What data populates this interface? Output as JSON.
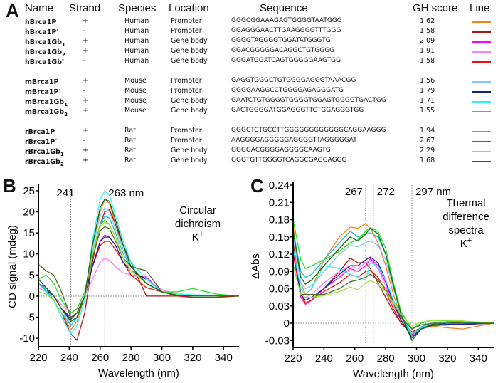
{
  "panels": {
    "a": "A",
    "b": "B",
    "c": "C"
  },
  "table": {
    "headers": {
      "name": "Name",
      "strand": "Strand",
      "species": "Species",
      "location": "Location",
      "sequence": "Sequence",
      "gh": "GH score",
      "line": "Line"
    },
    "rows": [
      {
        "base": "hBrca1P",
        "sub": "",
        "sup": "",
        "strand": "+",
        "species": "Human",
        "location": "Promoter",
        "sequence": "GGGCGGAAAGAGTGGGGTAATGGG",
        "gh": "1.62",
        "color": "#f58220"
      },
      {
        "base": "hBrca1P",
        "sub": "",
        "sup": "-",
        "strand": "-",
        "species": "Human",
        "location": "Promoter",
        "sequence": "GGAGGGAACTTGAAGGGGTTTGGG",
        "gh": "1.58",
        "color": "#a01818"
      },
      {
        "base": "hBrca1Gb",
        "sub": "1",
        "sup": "",
        "strand": "+",
        "species": "Human",
        "location": "Gene body",
        "sequence": "GGGGTAGGGGTGGATATGGGTG",
        "gh": "2.09",
        "color": "#ff00ff"
      },
      {
        "base": "hBrca1Gb",
        "sub": "2",
        "sup": "",
        "strand": "+",
        "species": "Human",
        "location": "Gene body",
        "sequence": "GGACGGGGGACAGGCTGTGGGG",
        "gh": "1.91",
        "color": "#ff80f0"
      },
      {
        "base": "hBrca1Gb",
        "sub": "",
        "sup": "-",
        "strand": "-",
        "species": "Human",
        "location": "Gene body",
        "sequence": "GGGATGGATCAGTGGGGGAAGTGG",
        "gh": "1.58",
        "color": "#ee1111"
      },
      {
        "base": "mBrca1P",
        "sub": "",
        "sup": "",
        "strand": "+",
        "species": "Mouse",
        "location": "Promoter",
        "sequence": "GAGGTGGGCTGTGGGGAGGGTAAACGG",
        "gh": "1.56",
        "color": "#80c8f8"
      },
      {
        "base": "mBrca1P",
        "sub": "",
        "sup": "-",
        "strand": "-",
        "species": "Mouse",
        "location": "Promoter",
        "sequence": "GGGGAAGGCCTGGGGAGAGGGATG",
        "gh": "1.79",
        "color": "#1c1c90"
      },
      {
        "base": "mBrca1Gb",
        "sub": "1",
        "sup": "",
        "strand": "+",
        "species": "Mouse",
        "location": "Gene body",
        "sequence": "GAATCTGTGGGGTGGGGTGGAGTGGGGTGACTGG",
        "gh": "1.71",
        "color": "#30f0f8"
      },
      {
        "base": "mBrca1Gb",
        "sub": "2",
        "sup": "",
        "strand": "+",
        "species": "Mouse",
        "location": "Gene body",
        "sequence": "GACTGGGGATGGAGGGTTCTGGAGGGTGG",
        "gh": "1.55",
        "color": "#20c0d0"
      },
      {
        "base": "rBrca1P",
        "sub": "",
        "sup": "",
        "strand": "+",
        "species": "Rat",
        "location": "Promoter",
        "sequence": "GGGCTCTGCCTTGGGGGGGGGGGGCAGGAAGGG",
        "gh": "1.94",
        "color": "#22e022"
      },
      {
        "base": "rBrca1P",
        "sub": "",
        "sup": "-",
        "strand": "-",
        "species": "Rat",
        "location": "Promoter",
        "sequence": "AAGGGGAGGGGGAGGGGTTAGGGGGAT",
        "gh": "2.67",
        "color": "#4e6e22"
      },
      {
        "base": "rBrca1Gb",
        "sub": "1",
        "sup": "",
        "strand": "+",
        "species": "Rat",
        "location": "Gene body",
        "sequence": "GGGGACGGGGAGGGGCAAGTG",
        "gh": "2.29",
        "color": "#a0e040"
      },
      {
        "base": "rBrca1Gb",
        "sub": "2",
        "sup": "",
        "strand": "+",
        "species": "Rat",
        "location": "Gene body",
        "sequence": "GGGTGTTGGGGTCAGGCGAGGAGGG",
        "gh": "1.68",
        "color": "#106a10"
      }
    ]
  },
  "chart_data": [
    {
      "type": "line",
      "xlabel": "Wavelength (nm)",
      "ylabel": "CD signal (mdeg)",
      "xlim": [
        220,
        350
      ],
      "ylim": [
        -12,
        26
      ],
      "xticks": [
        220,
        240,
        260,
        280,
        300,
        320,
        340
      ],
      "yticks": [
        -10,
        -5,
        0,
        5,
        10,
        15,
        20,
        25
      ],
      "markers": [
        {
          "x": 241,
          "label": "241"
        },
        {
          "x": 263,
          "label": "263 nm"
        }
      ],
      "annotation": [
        "Circular",
        "dichroism",
        "K+"
      ],
      "x": [
        220,
        225,
        230,
        235,
        241,
        245,
        250,
        255,
        260,
        263,
        266,
        270,
        275,
        280,
        290,
        300,
        310,
        320,
        335,
        350
      ],
      "series": [
        {
          "color": "#f58220",
          "values": [
            3,
            1,
            -1,
            -4,
            -8,
            -6,
            0,
            12,
            20,
            23,
            22,
            17,
            11,
            7,
            3,
            1,
            0.3,
            0,
            0,
            0
          ]
        },
        {
          "color": "#a01818",
          "values": [
            3,
            1,
            -1,
            -4,
            -9,
            -10.5,
            -4,
            8,
            17,
            20,
            20.5,
            17,
            12,
            8,
            0,
            0,
            0,
            0,
            0,
            0
          ]
        },
        {
          "color": "#ff00ff",
          "values": [
            3,
            2,
            0,
            -3,
            -5,
            -4,
            0,
            7,
            13,
            14.5,
            14,
            12,
            8,
            5,
            4.5,
            1,
            0.3,
            0,
            0,
            0
          ]
        },
        {
          "color": "#ff80f0",
          "values": [
            2,
            1,
            0,
            -2,
            -4,
            -3,
            0,
            4,
            8,
            9,
            8.5,
            7,
            5.5,
            5,
            4,
            1.5,
            0.5,
            0.3,
            0,
            0
          ]
        },
        {
          "color": "#ee1111",
          "values": [
            3,
            1.5,
            0,
            -3,
            -5,
            -4,
            0,
            7,
            12,
            13,
            13,
            11,
            8,
            5,
            2,
            1,
            0,
            -0.3,
            -0.3,
            0
          ]
        },
        {
          "color": "#80c8f8",
          "values": [
            4,
            2,
            0,
            -3,
            -7,
            -5,
            0,
            11,
            19,
            21,
            20,
            16,
            11,
            7,
            3,
            1,
            0.3,
            0,
            0,
            0
          ]
        },
        {
          "color": "#1c1c90",
          "values": [
            3,
            1.5,
            0,
            -3,
            -5.5,
            -4,
            0,
            7,
            13,
            14,
            14,
            12,
            8,
            6,
            4,
            1,
            0.2,
            0,
            0,
            0
          ]
        },
        {
          "color": "#30f0f8",
          "values": [
            3,
            1,
            -1,
            -5,
            -9,
            -7,
            -1,
            13,
            23,
            25,
            24,
            19,
            13,
            8,
            4,
            1,
            0.5,
            0.3,
            0.2,
            0
          ]
        },
        {
          "color": "#20c0d0",
          "values": [
            3,
            1.5,
            -1,
            -4,
            -7,
            -5,
            0,
            10,
            17,
            19,
            18.5,
            15,
            10,
            7,
            3,
            1,
            0.2,
            0,
            0,
            0
          ]
        },
        {
          "color": "#22e022",
          "values": [
            4,
            5,
            3,
            -1,
            -4,
            -3,
            1,
            10,
            17,
            18,
            17,
            14,
            9,
            6,
            3,
            1,
            1,
            1.8,
            0.5,
            0
          ]
        },
        {
          "color": "#4e6e22",
          "values": [
            7.5,
            6,
            5,
            1,
            -5,
            -4,
            0,
            9,
            15.5,
            16.5,
            16,
            13,
            9,
            7,
            6,
            1,
            0.2,
            0,
            0,
            0
          ]
        },
        {
          "color": "#a0e040",
          "values": [
            1,
            0.5,
            -1,
            -4,
            -6,
            -5,
            0,
            10,
            16.5,
            17.5,
            17,
            14,
            9,
            6,
            3,
            1,
            0.3,
            0,
            0,
            0
          ]
        },
        {
          "color": "#106a10",
          "values": [
            4,
            2,
            0,
            -3,
            -6,
            -5,
            0,
            12,
            21,
            23,
            22.5,
            18,
            12,
            7,
            3,
            1,
            0.2,
            0,
            0,
            0
          ]
        }
      ]
    },
    {
      "type": "line",
      "xlabel": "Wavelength (nm)",
      "ylabel": "ΔAbs",
      "xlim": [
        220,
        350
      ],
      "ylim": [
        -0.042,
        0.24
      ],
      "xticks": [
        220,
        240,
        260,
        280,
        300,
        320,
        340
      ],
      "yticks": [
        -0.03,
        0,
        0.03,
        0.06,
        0.09,
        0.12,
        0.15,
        0.18,
        0.21,
        0.24
      ],
      "ytick_labels": [
        "-0.03",
        "0",
        "0.03",
        "0.06",
        "0.09",
        "0.12",
        "0.15",
        "0.18",
        "0.21",
        "0.24"
      ],
      "markers": [
        {
          "x": 267,
          "label": "267"
        },
        {
          "x": 272,
          "label": "272"
        },
        {
          "x": 297,
          "label": "297 nm"
        }
      ],
      "annotation": [
        "Thermal",
        "difference",
        "spectra",
        "K+"
      ],
      "x": [
        220,
        225,
        228,
        232,
        240,
        250,
        257,
        262,
        267,
        270,
        275,
        280,
        285,
        290,
        297,
        303,
        310,
        320,
        330,
        350
      ],
      "series": [
        {
          "color": "#f58220",
          "values": [
            0.17,
            0.07,
            0.05,
            0.06,
            0.11,
            0.15,
            0.167,
            0.165,
            0.173,
            0.165,
            0.14,
            0.1,
            0.05,
            0.01,
            -0.02,
            -0.01,
            -0.005,
            -0.008,
            -0.01,
            0
          ]
        },
        {
          "color": "#a01818",
          "values": [
            0.14,
            0.05,
            0.035,
            0.04,
            0.06,
            0.09,
            0.113,
            0.105,
            0.105,
            0.095,
            0.07,
            0.045,
            0.02,
            0,
            -0.015,
            -0.008,
            -0.002,
            0,
            0,
            0
          ]
        },
        {
          "color": "#ff00ff",
          "values": [
            0.12,
            0.045,
            0.033,
            0.04,
            0.06,
            0.08,
            0.095,
            0.09,
            0.1,
            0.112,
            0.1,
            0.07,
            0.035,
            0.005,
            -0.022,
            -0.01,
            -0.004,
            -0.003,
            -0.002,
            0
          ]
        },
        {
          "color": "#ff80f0",
          "values": [
            0.12,
            0.05,
            0.045,
            0.05,
            0.07,
            0.09,
            0.1,
            0.095,
            0.105,
            0.11,
            0.095,
            0.065,
            0.03,
            0.005,
            -0.02,
            -0.008,
            -0.003,
            -0.002,
            -0.002,
            0
          ]
        },
        {
          "color": "#ee1111",
          "values": [
            0.12,
            0.05,
            0.035,
            0.04,
            0.055,
            0.07,
            0.085,
            0.08,
            0.09,
            0.092,
            0.08,
            0.055,
            0.025,
            0,
            -0.02,
            -0.01,
            -0.004,
            -0.003,
            -0.002,
            0
          ]
        },
        {
          "color": "#80c8f8",
          "values": [
            0.15,
            0.07,
            0.06,
            0.065,
            0.09,
            0.12,
            0.135,
            0.133,
            0.14,
            0.143,
            0.135,
            0.11,
            0.06,
            0.015,
            -0.018,
            -0.008,
            -0.002,
            0,
            0,
            0
          ]
        },
        {
          "color": "#1c1c90",
          "values": [
            0.13,
            0.05,
            0.04,
            0.045,
            0.06,
            0.085,
            0.1,
            0.1,
            0.11,
            0.115,
            0.105,
            0.075,
            0.035,
            0.005,
            -0.025,
            -0.01,
            -0.003,
            -0.002,
            -0.002,
            0
          ]
        },
        {
          "color": "#30f0f8",
          "values": [
            0.13,
            0.06,
            0.05,
            0.06,
            0.1,
            0.095,
            0.085,
            0.08,
            0.075,
            0.105,
            0.1,
            0.075,
            0.04,
            0.01,
            -0.022,
            -0.008,
            -0.002,
            0,
            0,
            0
          ]
        },
        {
          "color": "#20c0d0",
          "values": [
            0.16,
            0.09,
            0.08,
            0.085,
            0.11,
            0.14,
            0.16,
            0.15,
            0.155,
            0.157,
            0.15,
            0.12,
            0.065,
            0.015,
            -0.022,
            -0.006,
            0,
            0.002,
            0.002,
            0
          ]
        },
        {
          "color": "#22e022",
          "values": [
            0.18,
            0.11,
            0.095,
            0.1,
            0.11,
            0.125,
            0.14,
            0.145,
            0.16,
            0.166,
            0.16,
            0.13,
            0.07,
            0.02,
            -0.01,
            0,
            0.005,
            0.004,
            0.003,
            0
          ]
        },
        {
          "color": "#4e6e22",
          "values": [
            0.1,
            0.05,
            0.05,
            0.05,
            0.05,
            0.06,
            0.072,
            0.075,
            0.08,
            0.085,
            0.075,
            0.06,
            0.035,
            0.01,
            -0.01,
            -0.003,
            0,
            0.002,
            0,
            0
          ]
        },
        {
          "color": "#a0e040",
          "values": [
            0.1,
            0.05,
            0.045,
            0.045,
            0.048,
            0.055,
            0.063,
            0.058,
            0.07,
            0.074,
            0.068,
            0.055,
            0.035,
            0.015,
            -0.005,
            0.002,
            0.005,
            0.005,
            0.004,
            0
          ]
        },
        {
          "color": "#106a10",
          "values": [
            0.16,
            0.08,
            0.068,
            0.075,
            0.1,
            0.13,
            0.15,
            0.143,
            0.155,
            0.165,
            0.155,
            0.12,
            0.065,
            0.015,
            -0.03,
            -0.01,
            -0.002,
            0,
            0,
            0
          ]
        }
      ]
    }
  ]
}
